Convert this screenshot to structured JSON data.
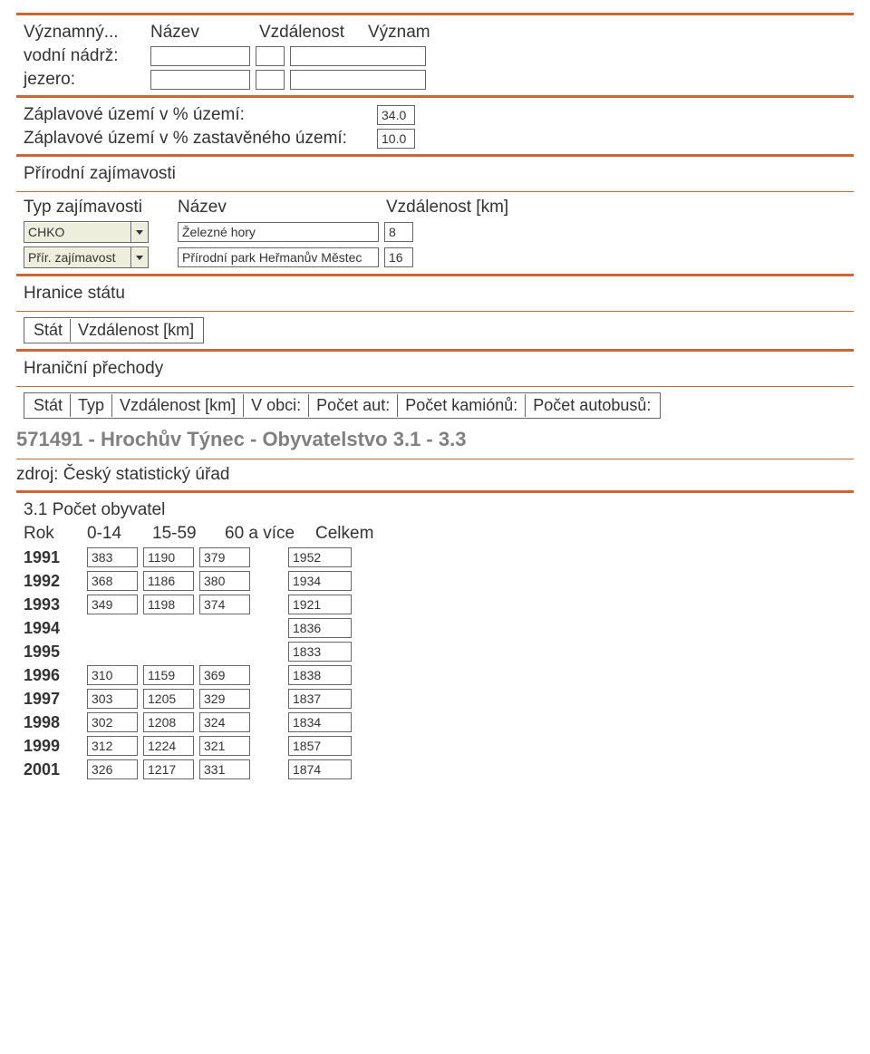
{
  "colors": {
    "accent": "#cc6633",
    "box_border": "#666666",
    "dropdown_bg": "#eeeedd",
    "text": "#333333",
    "subtitle": "#808080"
  },
  "reservoir": {
    "title_prefix": "Významný...",
    "headers": {
      "name": "Název",
      "dist": "Vzdálenost",
      "meaning": "Význam"
    },
    "rows": [
      {
        "label": "vodní nádrž:",
        "name": "",
        "dist": "",
        "meaning": ""
      },
      {
        "label": "jezero:",
        "name": "",
        "dist": "",
        "meaning": ""
      }
    ]
  },
  "flood": {
    "row1_label": "Záplavové území v % území:",
    "row1_value": "34.0",
    "row2_label": "Záplavové území v % zastavěného území:",
    "row2_value": "10.0"
  },
  "natural": {
    "title": "Přírodní zajímavosti",
    "headers": {
      "type": "Typ zajímavosti",
      "name": "Název",
      "dist": "Vzdálenost [km]"
    },
    "rows": [
      {
        "type": "CHKO",
        "name": "Železné hory",
        "dist": "8"
      },
      {
        "type": "Přír. zajímavost",
        "name": "Přírodní park Heřmanův Městec",
        "dist": "16"
      }
    ]
  },
  "border": {
    "title": "Hranice státu",
    "headers": {
      "state": "Stát",
      "dist": "Vzdálenost [km]"
    }
  },
  "crossings": {
    "title": "Hraniční přechody",
    "headers": {
      "state": "Stát",
      "type": "Typ",
      "dist": "Vzdálenost [km]",
      "town": "V obci:",
      "cars": "Počet aut:",
      "trucks": "Počet kamiónů:",
      "buses": "Počet autobusů:"
    }
  },
  "population": {
    "subtitle": "571491 - Hrochův Týnec - Obyvatelstvo 3.1 - 3.3",
    "source": "zdroj: Český statistický úřad",
    "heading": "3.1 Počet obyvatel",
    "headers": {
      "year": "Rok",
      "a": "0-14",
      "b": "15-59",
      "c": "60 a více",
      "total": "Celkem"
    },
    "rows": [
      {
        "year": "1991",
        "a": "383",
        "b": "1190",
        "c": "379",
        "total": "1952"
      },
      {
        "year": "1992",
        "a": "368",
        "b": "1186",
        "c": "380",
        "total": "1934"
      },
      {
        "year": "1993",
        "a": "349",
        "b": "1198",
        "c": "374",
        "total": "1921"
      },
      {
        "year": "1994",
        "a": "",
        "b": "",
        "c": "",
        "total": "1836"
      },
      {
        "year": "1995",
        "a": "",
        "b": "",
        "c": "",
        "total": "1833"
      },
      {
        "year": "1996",
        "a": "310",
        "b": "1159",
        "c": "369",
        "total": "1838"
      },
      {
        "year": "1997",
        "a": "303",
        "b": "1205",
        "c": "329",
        "total": "1837"
      },
      {
        "year": "1998",
        "a": "302",
        "b": "1208",
        "c": "324",
        "total": "1834"
      },
      {
        "year": "1999",
        "a": "312",
        "b": "1224",
        "c": "321",
        "total": "1857"
      },
      {
        "year": "2001",
        "a": "326",
        "b": "1217",
        "c": "331",
        "total": "1874"
      }
    ]
  }
}
